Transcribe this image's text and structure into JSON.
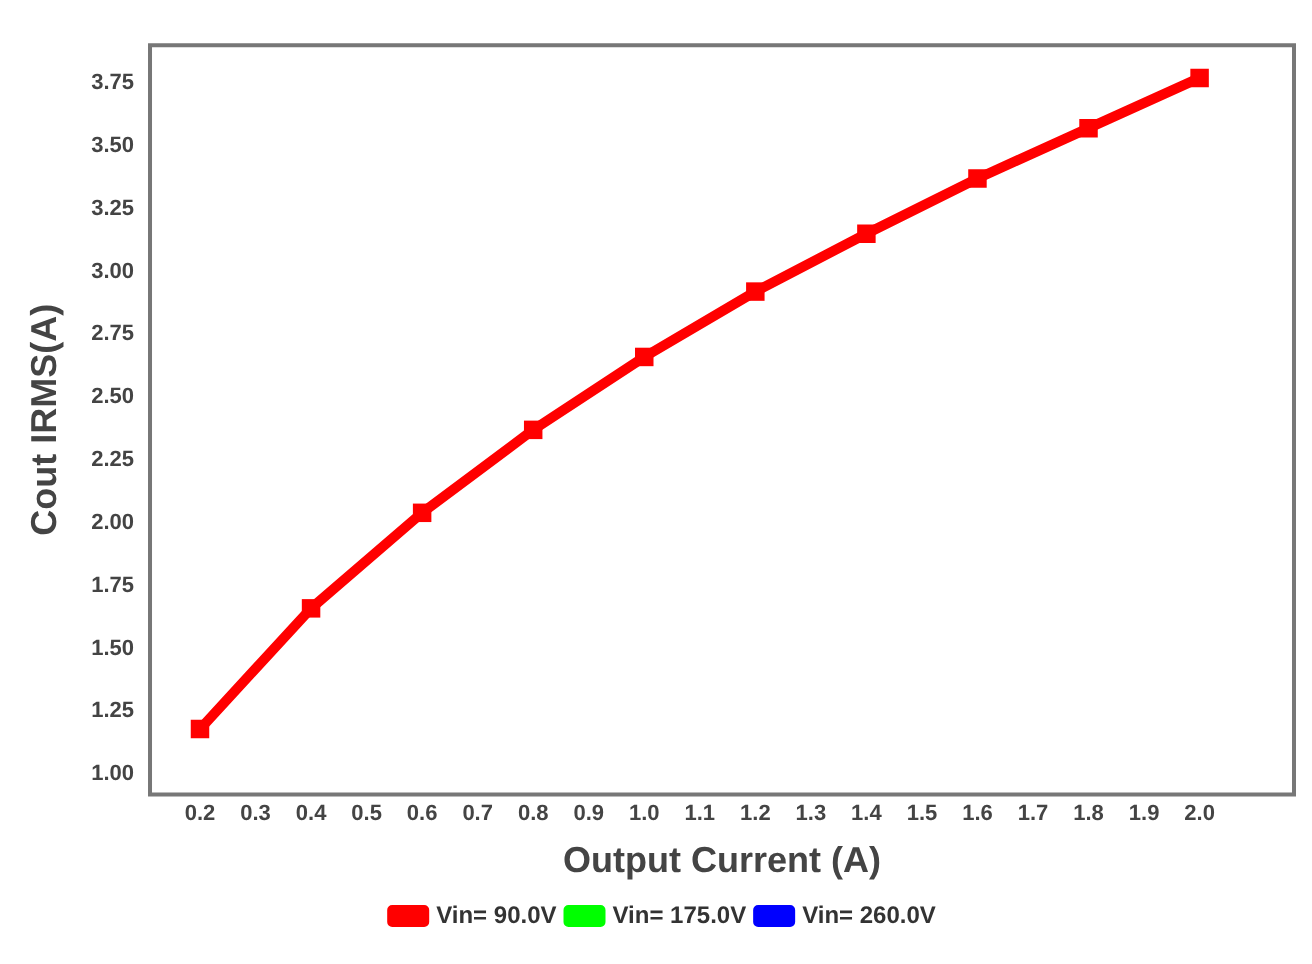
{
  "chart_data": {
    "type": "line",
    "xlabel": "Output Current (A)",
    "ylabel": "Cout IRMS(A)",
    "x": [
      0.2,
      0.4,
      0.6,
      0.8,
      1.0,
      1.2,
      1.4,
      1.6,
      1.8,
      2.0
    ],
    "series": [
      {
        "name": "Vin= 90.0V",
        "color": "#ff0000",
        "values": [
          1.18,
          1.66,
          2.04,
          2.37,
          2.66,
          2.92,
          3.15,
          3.37,
          3.57,
          3.77
        ]
      },
      {
        "name": "Vin= 175.0V",
        "color": "#00ff00",
        "values": [
          null,
          null,
          null,
          null,
          null,
          null,
          null,
          null,
          null,
          null
        ]
      },
      {
        "name": "Vin= 260.0V",
        "color": "#0000ff",
        "values": [
          null,
          null,
          null,
          null,
          null,
          null,
          null,
          null,
          null,
          null
        ]
      }
    ],
    "xlim": [
      0.11,
      2.17
    ],
    "xticks": [
      0.2,
      0.3,
      0.4,
      0.5,
      0.6,
      0.7,
      0.8,
      0.9,
      {
        "value": 1,
        "label": "1.0"
      },
      1.1,
      1.2,
      1.3,
      1.4,
      1.5,
      1.6,
      1.7,
      1.8,
      1.9,
      {
        "value": 2,
        "label": "2.0"
      }
    ],
    "ylim": [
      0.92,
      3.9
    ],
    "yticks": [
      {
        "value": 1,
        "label": "1.00"
      },
      1.25,
      {
        "value": 1.5,
        "label": "1.50"
      },
      1.75,
      {
        "value": 2,
        "label": "2.00"
      },
      2.25,
      {
        "value": 2.5,
        "label": "2.50"
      },
      2.75,
      {
        "value": 3,
        "label": "3.00"
      },
      3.25,
      {
        "value": 3.5,
        "label": "3.50"
      },
      3.75
    ],
    "grid": false,
    "legend": "bottom",
    "marker": "square",
    "line_style": "solid"
  }
}
